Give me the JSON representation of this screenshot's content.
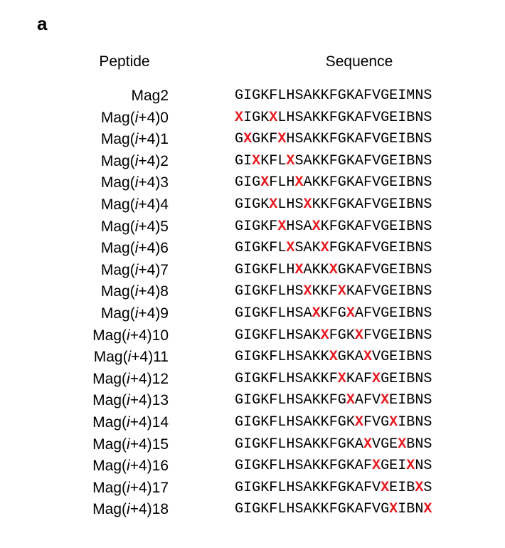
{
  "panel_label": "a",
  "headers": {
    "peptide": "Peptide",
    "sequence": "Sequence"
  },
  "colors": {
    "mutation_x": "#e8191f",
    "text": "#000000"
  },
  "rows": [
    {
      "name_prefix": "Mag2",
      "name_italic": "",
      "name_suffix": "",
      "sequence": "GIGKFLHSAKKFGKAFVGEIMNS"
    },
    {
      "name_prefix": "Mag(",
      "name_italic": "i",
      "name_suffix": "+4)0",
      "sequence": "XIGKXLHSAKKFGKAFVGEIBNS"
    },
    {
      "name_prefix": "Mag(",
      "name_italic": "i",
      "name_suffix": "+4)1",
      "sequence": "GXGKFXHSAKKFGKAFVGEIBNS"
    },
    {
      "name_prefix": "Mag(",
      "name_italic": "i",
      "name_suffix": "+4)2",
      "sequence": "GIXKFLXSAKKFGKAFVGEIBNS"
    },
    {
      "name_prefix": "Mag(",
      "name_italic": "i",
      "name_suffix": "+4)3",
      "sequence": "GIGXFLHXAKKFGKAFVGEIBNS"
    },
    {
      "name_prefix": "Mag(",
      "name_italic": "i",
      "name_suffix": "+4)4",
      "sequence": "GIGKXLHSXKKFGKAFVGEIBNS"
    },
    {
      "name_prefix": "Mag(",
      "name_italic": "i",
      "name_suffix": "+4)5",
      "sequence": "GIGKFXHSAXKFGKAFVGEIBNS"
    },
    {
      "name_prefix": "Mag(",
      "name_italic": "i",
      "name_suffix": "+4)6",
      "sequence": "GIGKFLXSAKXFGKAFVGEIBNS"
    },
    {
      "name_prefix": "Mag(",
      "name_italic": "i",
      "name_suffix": "+4)7",
      "sequence": "GIGKFLHXAKKXGKAFVGEIBNS"
    },
    {
      "name_prefix": "Mag(",
      "name_italic": "i",
      "name_suffix": "+4)8",
      "sequence": "GIGKFLHSXKKFXKAFVGEIBNS"
    },
    {
      "name_prefix": "Mag(",
      "name_italic": "i",
      "name_suffix": "+4)9",
      "sequence": "GIGKFLHSAXKFGXAFVGEIBNS"
    },
    {
      "name_prefix": "Mag(",
      "name_italic": "i",
      "name_suffix": "+4)10",
      "sequence": "GIGKFLHSAKXFGKXFVGEIBNS"
    },
    {
      "name_prefix": "Mag(",
      "name_italic": "i",
      "name_suffix": "+4)11",
      "sequence": "GIGKFLHSAKKXGKAXVGEIBNS"
    },
    {
      "name_prefix": "Mag(",
      "name_italic": "i",
      "name_suffix": "+4)12",
      "sequence": "GIGKFLHSAKKFXKAFXGEIBNS"
    },
    {
      "name_prefix": "Mag(",
      "name_italic": "i",
      "name_suffix": "+4)13",
      "sequence": "GIGKFLHSAKKFGXAFVXEIBNS"
    },
    {
      "name_prefix": "Mag(",
      "name_italic": "i",
      "name_suffix": "+4)14",
      "sequence": "GIGKFLHSAKKFGKXFVGXIBNS"
    },
    {
      "name_prefix": "Mag(",
      "name_italic": "i",
      "name_suffix": "+4)15",
      "sequence": "GIGKFLHSAKKFGKAXVGEXBNS"
    },
    {
      "name_prefix": "Mag(",
      "name_italic": "i",
      "name_suffix": "+4)16",
      "sequence": "GIGKFLHSAKKFGKAFXGEIXNS"
    },
    {
      "name_prefix": "Mag(",
      "name_italic": "i",
      "name_suffix": "+4)17",
      "sequence": "GIGKFLHSAKKFGKAFVXEIBXS"
    },
    {
      "name_prefix": "Mag(",
      "name_italic": "i",
      "name_suffix": "+4)18",
      "sequence": "GIGKFLHSAKKFGKAFVGXIBNX"
    }
  ]
}
